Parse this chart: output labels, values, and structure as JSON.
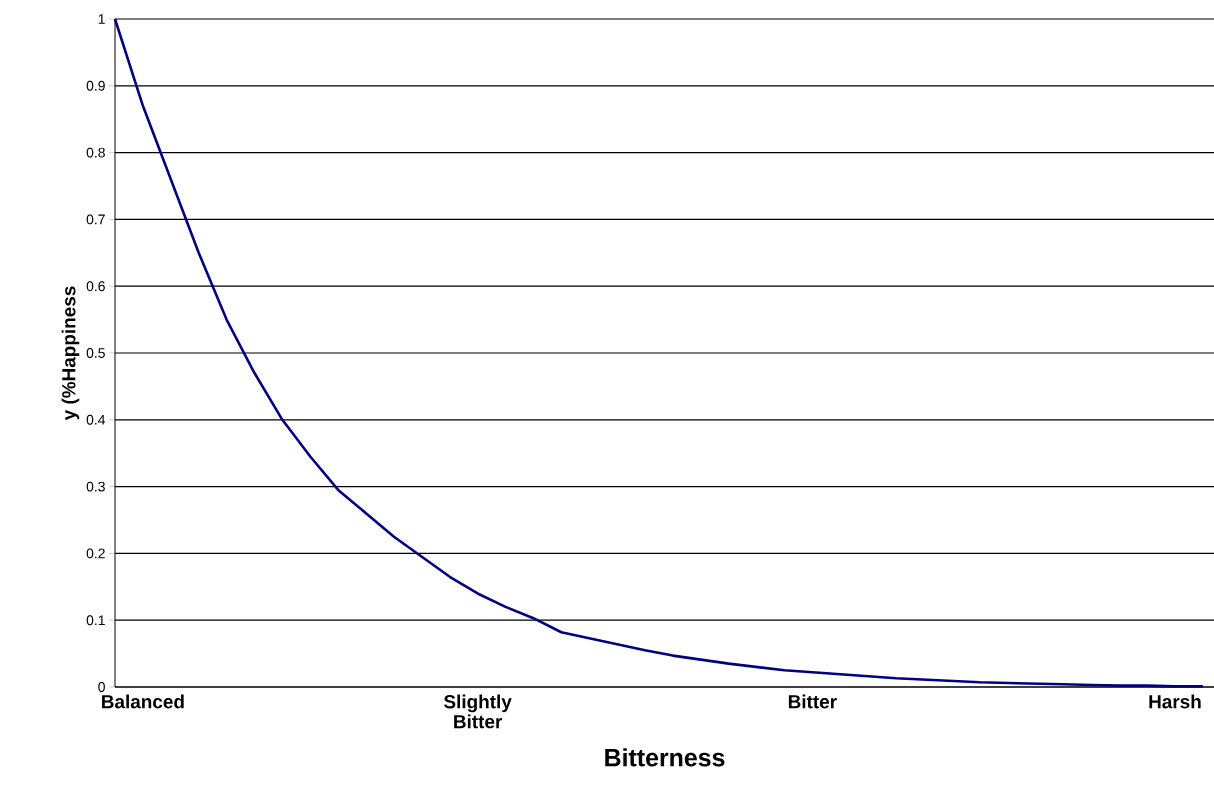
{
  "chart_data": {
    "type": "line",
    "xlabel": "Bitterness",
    "ylabel": "y (%Happiness",
    "categories": [
      null,
      "Balanced",
      null,
      null,
      null,
      null,
      null,
      null,
      null,
      null,
      null,
      null,
      null,
      "Slightly Bitter",
      null,
      null,
      null,
      null,
      null,
      null,
      null,
      null,
      null,
      null,
      null,
      "Bitter",
      null,
      null,
      null,
      null,
      null,
      null,
      null,
      null,
      null,
      null,
      null,
      null,
      "Harsh",
      null
    ],
    "series": [
      {
        "color": "#000080",
        "values": [
          1,
          0.87,
          0.76,
          0.65,
          0.55,
          0.47,
          0.4,
          0.345,
          0.295,
          0.26,
          0.225,
          0.195,
          0.165,
          0.14,
          0.12,
          0.103,
          0.082,
          0.073,
          0.064,
          0.055,
          0.047,
          0.041,
          0.035,
          0.03,
          0.025,
          0.022,
          0.019,
          0.016,
          0.013,
          0.011,
          0.009,
          0.007,
          0.006,
          0.005,
          0.004,
          0.003,
          0.002,
          0.002,
          0.001,
          0.001
        ]
      }
    ],
    "ylim": [
      0,
      1
    ],
    "yticks": [
      0,
      0.1,
      0.2,
      0.3,
      0.4,
      0.5,
      0.6,
      0.7,
      0.8,
      0.9,
      1
    ],
    "grid": "y",
    "marker": "none",
    "line_style": "solid"
  }
}
